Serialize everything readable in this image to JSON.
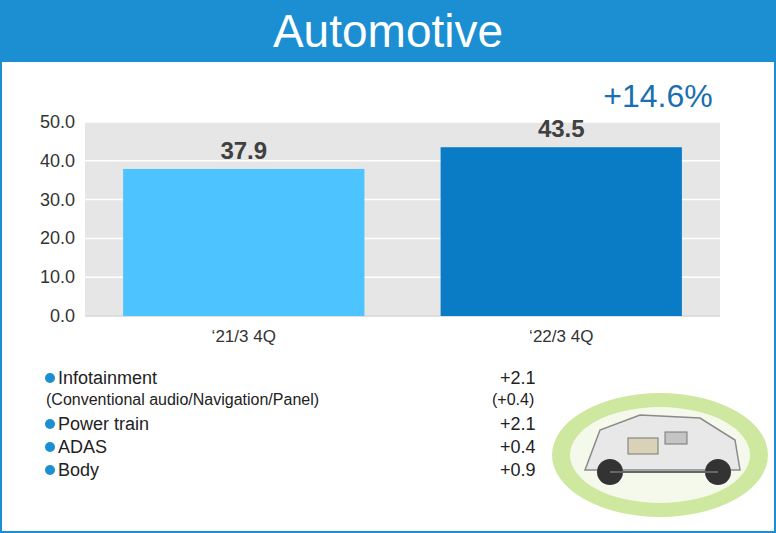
{
  "chart_data": {
    "type": "bar",
    "title": "Automotive",
    "categories": [
      "‘21/3 4Q",
      "‘22/3 4Q"
    ],
    "values": [
      37.9,
      43.5
    ],
    "colors": [
      "#4dc3ff",
      "#0a7cc6"
    ],
    "ylim": [
      0,
      50
    ],
    "yticks": [
      {
        "value": 0,
        "label": "0.0"
      },
      {
        "value": 10,
        "label": "10.0"
      },
      {
        "value": 20,
        "label": "20.0"
      },
      {
        "value": 30,
        "label": "30.0"
      },
      {
        "value": 40,
        "label": "40.0"
      },
      {
        "value": 50,
        "label": "50.0"
      }
    ],
    "grid": true,
    "data_labels": true,
    "annotations": [
      {
        "text": "+14.6%"
      }
    ],
    "breakdown": [
      {
        "label": "Infotainment",
        "value_text": "+2.1",
        "detail": {
          "label": "(Conventional audio/Navigation/Panel)",
          "value_text": "(+0.4)"
        }
      },
      {
        "label": "Power train",
        "value_text": "+2.1"
      },
      {
        "label": "ADAS",
        "value_text": "+0.4"
      },
      {
        "label": "Body",
        "value_text": "+0.9"
      }
    ]
  }
}
